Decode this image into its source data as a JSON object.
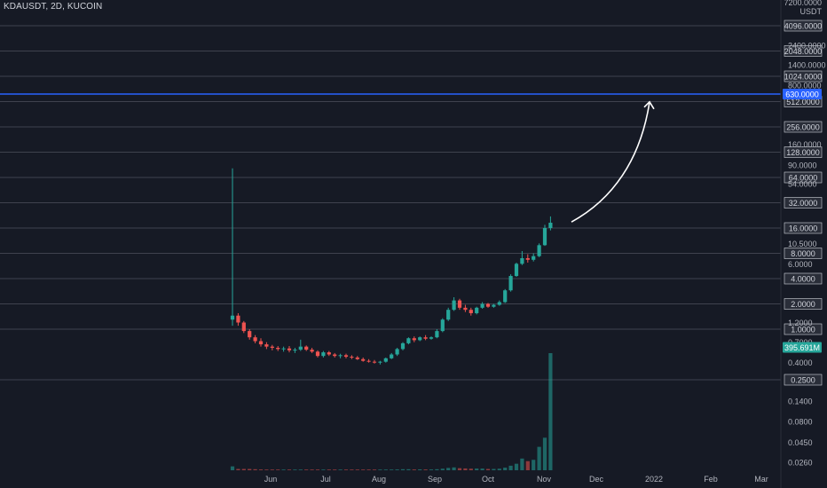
{
  "symbol": {
    "title": "KDAUSDT, 2D, KUCOIN"
  },
  "axis": {
    "unit": "USDT",
    "top_label": "7200.0000"
  },
  "colors": {
    "background": "#161a25",
    "gridline": "#787b86",
    "up_candle": "#26a69a",
    "down_candle": "#ef5350",
    "horizontal_line": "#2962ff",
    "arrow": "#ffffff",
    "price_tag": "#26a69a"
  },
  "chart_data": {
    "type": "candlestick",
    "title": "KDAUSDT, 2D, KUCOIN",
    "y_scale": "log",
    "y_unit": "USDT",
    "ylim": [
      0.02,
      7200
    ],
    "x_tick_labels": [
      "Jun",
      "Jul",
      "Aug",
      "Sep",
      "Oct",
      "Nov",
      "Dec",
      "2022",
      "Feb",
      "Mar"
    ],
    "y_boxed_labels": [
      "4096.0000",
      "2048.0000",
      "1024.0000",
      "512.0000",
      "256.0000",
      "128.0000",
      "64.0000",
      "32.0000",
      "16.0000",
      "8.0000",
      "4.0000",
      "2.0000",
      "1.0000",
      "0.2500"
    ],
    "y_plain_labels": [
      "2400.0000",
      "1400.0000",
      "800.0000",
      "160.0000",
      "90.0000",
      "54.0000",
      "10.5000",
      "6.0000",
      "1.2000",
      "0.7000",
      "0.4000",
      "0.1400",
      "0.0800",
      "0.0450",
      "0.0260"
    ],
    "horizontal_levels": [
      {
        "price": 630.0,
        "label": "630.0000",
        "color": "#2962ff"
      }
    ],
    "price_tags": [
      {
        "price": 0.5,
        "label": "395.691M"
      }
    ],
    "annotations": [
      {
        "type": "curved_arrow",
        "from_price": 18,
        "to_price": 560,
        "color": "#ffffff"
      }
    ],
    "candles": [
      {
        "o": 1.3,
        "h": 82.0,
        "l": 1.1,
        "c": 1.45
      },
      {
        "o": 1.45,
        "h": 1.55,
        "l": 1.1,
        "c": 1.2
      },
      {
        "o": 1.2,
        "h": 1.25,
        "l": 0.9,
        "c": 0.95
      },
      {
        "o": 0.95,
        "h": 1.0,
        "l": 0.75,
        "c": 0.8
      },
      {
        "o": 0.8,
        "h": 0.85,
        "l": 0.68,
        "c": 0.72
      },
      {
        "o": 0.72,
        "h": 0.78,
        "l": 0.62,
        "c": 0.66
      },
      {
        "o": 0.66,
        "h": 0.7,
        "l": 0.58,
        "c": 0.62
      },
      {
        "o": 0.62,
        "h": 0.65,
        "l": 0.56,
        "c": 0.6
      },
      {
        "o": 0.6,
        "h": 0.63,
        "l": 0.55,
        "c": 0.58
      },
      {
        "o": 0.58,
        "h": 0.62,
        "l": 0.54,
        "c": 0.59
      },
      {
        "o": 0.59,
        "h": 0.63,
        "l": 0.53,
        "c": 0.56
      },
      {
        "o": 0.56,
        "h": 0.6,
        "l": 0.52,
        "c": 0.57
      },
      {
        "o": 0.57,
        "h": 0.75,
        "l": 0.55,
        "c": 0.62
      },
      {
        "o": 0.62,
        "h": 0.64,
        "l": 0.55,
        "c": 0.57
      },
      {
        "o": 0.57,
        "h": 0.6,
        "l": 0.52,
        "c": 0.54
      },
      {
        "o": 0.54,
        "h": 0.56,
        "l": 0.46,
        "c": 0.48
      },
      {
        "o": 0.48,
        "h": 0.55,
        "l": 0.46,
        "c": 0.53
      },
      {
        "o": 0.53,
        "h": 0.55,
        "l": 0.48,
        "c": 0.5
      },
      {
        "o": 0.5,
        "h": 0.52,
        "l": 0.46,
        "c": 0.48
      },
      {
        "o": 0.48,
        "h": 0.51,
        "l": 0.45,
        "c": 0.49
      },
      {
        "o": 0.49,
        "h": 0.51,
        "l": 0.45,
        "c": 0.47
      },
      {
        "o": 0.47,
        "h": 0.49,
        "l": 0.44,
        "c": 0.46
      },
      {
        "o": 0.46,
        "h": 0.48,
        "l": 0.43,
        "c": 0.44
      },
      {
        "o": 0.44,
        "h": 0.46,
        "l": 0.41,
        "c": 0.42
      },
      {
        "o": 0.42,
        "h": 0.44,
        "l": 0.4,
        "c": 0.41
      },
      {
        "o": 0.41,
        "h": 0.43,
        "l": 0.39,
        "c": 0.4
      },
      {
        "o": 0.4,
        "h": 0.42,
        "l": 0.38,
        "c": 0.41
      },
      {
        "o": 0.41,
        "h": 0.46,
        "l": 0.4,
        "c": 0.45
      },
      {
        "o": 0.45,
        "h": 0.52,
        "l": 0.44,
        "c": 0.5
      },
      {
        "o": 0.5,
        "h": 0.6,
        "l": 0.48,
        "c": 0.58
      },
      {
        "o": 0.58,
        "h": 0.7,
        "l": 0.56,
        "c": 0.68
      },
      {
        "o": 0.68,
        "h": 0.8,
        "l": 0.66,
        "c": 0.78
      },
      {
        "o": 0.78,
        "h": 0.82,
        "l": 0.7,
        "c": 0.74
      },
      {
        "o": 0.74,
        "h": 0.82,
        "l": 0.72,
        "c": 0.8
      },
      {
        "o": 0.8,
        "h": 0.85,
        "l": 0.74,
        "c": 0.77
      },
      {
        "o": 0.77,
        "h": 0.82,
        "l": 0.75,
        "c": 0.8
      },
      {
        "o": 0.8,
        "h": 1.0,
        "l": 0.78,
        "c": 0.95
      },
      {
        "o": 0.95,
        "h": 1.35,
        "l": 0.92,
        "c": 1.3
      },
      {
        "o": 1.3,
        "h": 1.8,
        "l": 1.25,
        "c": 1.7
      },
      {
        "o": 1.7,
        "h": 2.4,
        "l": 1.65,
        "c": 2.2
      },
      {
        "o": 2.2,
        "h": 2.3,
        "l": 1.7,
        "c": 1.8
      },
      {
        "o": 1.8,
        "h": 1.95,
        "l": 1.6,
        "c": 1.7
      },
      {
        "o": 1.7,
        "h": 1.8,
        "l": 1.45,
        "c": 1.55
      },
      {
        "o": 1.55,
        "h": 1.85,
        "l": 1.5,
        "c": 1.8
      },
      {
        "o": 1.8,
        "h": 2.1,
        "l": 1.75,
        "c": 2.0
      },
      {
        "o": 2.0,
        "h": 2.05,
        "l": 1.8,
        "c": 1.85
      },
      {
        "o": 1.85,
        "h": 2.0,
        "l": 1.8,
        "c": 1.95
      },
      {
        "o": 1.95,
        "h": 2.2,
        "l": 1.9,
        "c": 2.1
      },
      {
        "o": 2.1,
        "h": 3.0,
        "l": 2.05,
        "c": 2.9
      },
      {
        "o": 2.9,
        "h": 4.5,
        "l": 2.8,
        "c": 4.3
      },
      {
        "o": 4.3,
        "h": 6.2,
        "l": 4.2,
        "c": 6.0
      },
      {
        "o": 6.0,
        "h": 8.5,
        "l": 5.8,
        "c": 7.0
      },
      {
        "o": 7.0,
        "h": 7.8,
        "l": 6.2,
        "c": 6.7
      },
      {
        "o": 6.7,
        "h": 8.0,
        "l": 6.4,
        "c": 7.4
      },
      {
        "o": 7.4,
        "h": 10.5,
        "l": 7.2,
        "c": 10.0
      },
      {
        "o": 10.0,
        "h": 17.5,
        "l": 9.8,
        "c": 16.0
      },
      {
        "o": 16.0,
        "h": 22.0,
        "l": 15.0,
        "c": 18.5
      }
    ],
    "volumes": [
      3,
      1,
      1,
      1,
      0.8,
      0.6,
      0.5,
      0.5,
      0.4,
      0.4,
      0.4,
      0.4,
      0.5,
      0.4,
      0.3,
      0.4,
      0.4,
      0.3,
      0.3,
      0.3,
      0.3,
      0.3,
      0.3,
      0.3,
      0.3,
      0.3,
      0.3,
      0.4,
      0.5,
      0.6,
      0.8,
      0.8,
      0.6,
      0.7,
      0.6,
      0.6,
      0.8,
      1.2,
      1.8,
      2.2,
      1.6,
      1.4,
      1.2,
      1.3,
      1.3,
      1.0,
      1.0,
      1.2,
      2.0,
      3.5,
      5,
      9,
      7,
      8,
      18,
      25,
      90
    ]
  }
}
